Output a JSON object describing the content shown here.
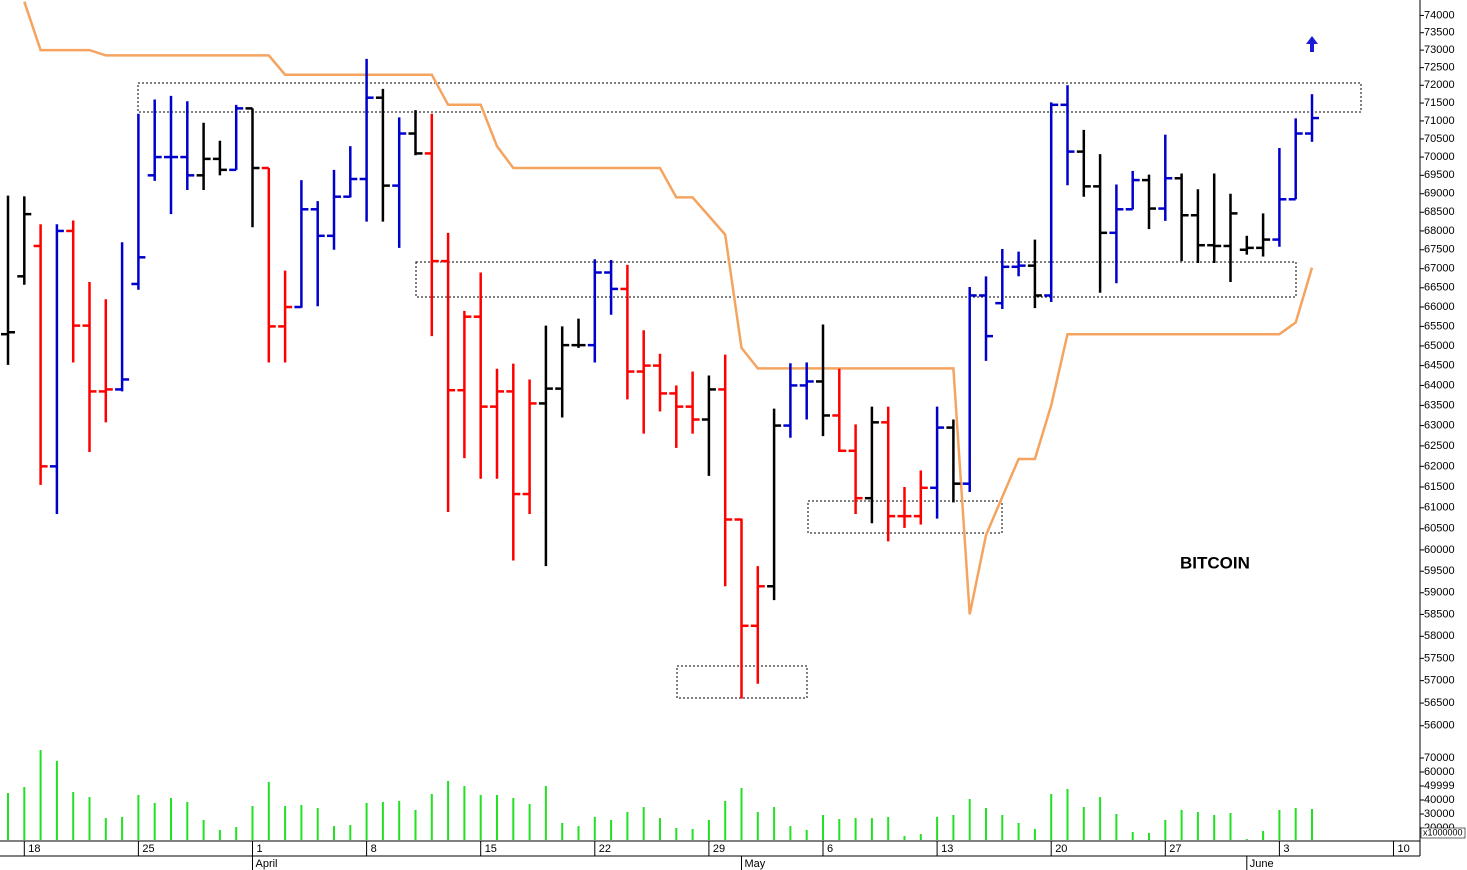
{
  "chart_data": {
    "type": "ohlc",
    "annotation": "BITCOIN",
    "log_scale": true,
    "categories": [
      null,
      "18",
      null,
      null,
      null,
      null,
      null,
      null,
      "25",
      null,
      null,
      null,
      null,
      null,
      null,
      "1",
      null,
      null,
      null,
      null,
      null,
      null,
      "8",
      null,
      null,
      null,
      null,
      null,
      null,
      "15",
      null,
      null,
      null,
      null,
      null,
      null,
      "22",
      null,
      null,
      null,
      null,
      null,
      null,
      "29",
      null,
      null,
      null,
      null,
      null,
      null,
      "6",
      null,
      null,
      null,
      null,
      null,
      null,
      "13",
      null,
      null,
      null,
      null,
      null,
      null,
      "20",
      null,
      null,
      null,
      null,
      null,
      null,
      "27",
      null,
      null,
      null,
      null,
      null,
      null,
      "3",
      null,
      null,
      null,
      null,
      null,
      null,
      "10",
      null
    ],
    "months": [
      null,
      null,
      null,
      null,
      null,
      null,
      null,
      null,
      null,
      null,
      null,
      null,
      null,
      null,
      null,
      "April",
      null,
      null,
      null,
      null,
      null,
      null,
      null,
      null,
      null,
      null,
      null,
      null,
      null,
      null,
      null,
      null,
      null,
      null,
      null,
      null,
      null,
      null,
      null,
      null,
      null,
      null,
      null,
      null,
      null,
      "May",
      null,
      null,
      null,
      null,
      null,
      null,
      null,
      null,
      null,
      null,
      null,
      null,
      null,
      null,
      null,
      null,
      null,
      null,
      null,
      null,
      null,
      null,
      null,
      null,
      null,
      null,
      null,
      null,
      null,
      null,
      "June",
      null,
      null,
      null,
      null,
      null,
      null,
      null,
      null,
      null,
      null
    ],
    "open": [
      65300,
      66800,
      67600,
      62000,
      68000,
      65520,
      63850,
      63900,
      66600,
      69500,
      70000,
      70000,
      69500,
      69950,
      69650,
      71350,
      69700,
      65500,
      66000,
      68580,
      67870,
      68920,
      69400,
      71650,
      69220,
      70650,
      70100,
      67200,
      63880,
      65750,
      63470,
      63850,
      61330,
      63550,
      63920,
      65020,
      65020,
      66900,
      66470,
      64350,
      64500,
      63800,
      63470,
      63150,
      63900,
      60720,
      58240,
      59150,
      63000,
      64000,
      64100,
      63250,
      62380,
      61230,
      63080,
      60800,
      60800,
      61480,
      62950,
      61580,
      66300,
      66100,
      67050,
      67080,
      66300,
      71450,
      70150,
      69200,
      67950,
      68580,
      69370,
      68600,
      69420,
      68420,
      67620,
      67600,
      67500,
      67550,
      67770,
      68850,
      70650,
      null,
      null,
      null,
      null,
      null,
      null
    ],
    "high": [
      68950,
      68930,
      68180,
      68180,
      68280,
      66650,
      66200,
      67700,
      71200,
      71600,
      71700,
      71550,
      70950,
      70450,
      71450,
      71350,
      69700,
      66950,
      69370,
      68800,
      69650,
      70300,
      72750,
      71900,
      71100,
      71300,
      71200,
      67950,
      65900,
      66900,
      64420,
      64550,
      64150,
      65520,
      65500,
      65700,
      67250,
      67230,
      67100,
      65400,
      64800,
      64000,
      64350,
      64250,
      64780,
      60740,
      59620,
      63420,
      64560,
      64580,
      65550,
      64420,
      63030,
      63470,
      63470,
      61500,
      61900,
      63470,
      63150,
      66520,
      66800,
      67520,
      67450,
      67770,
      71520,
      72000,
      70750,
      70080,
      69250,
      69620,
      69520,
      70620,
      69550,
      69120,
      69550,
      69000,
      67870,
      68470,
      70250,
      71070,
      71750,
      null,
      null,
      null,
      null,
      null,
      null
    ],
    "low": [
      64520,
      66580,
      61550,
      60850,
      64580,
      62350,
      63080,
      63850,
      66450,
      69350,
      68450,
      69100,
      69100,
      69500,
      69650,
      68100,
      64580,
      64580,
      65980,
      66020,
      67500,
      68900,
      68250,
      68250,
      67550,
      70050,
      65250,
      60900,
      62200,
      61700,
      61700,
      59750,
      60850,
      59620,
      63200,
      64950,
      64580,
      65800,
      63650,
      62800,
      63350,
      62450,
      62800,
      61770,
      59150,
      56600,
      56930,
      58830,
      62700,
      63150,
      62740,
      62350,
      60850,
      60630,
      60200,
      60520,
      60600,
      60740,
      61130,
      61380,
      64620,
      65950,
      66800,
      65970,
      66130,
      69230,
      68920,
      66370,
      66620,
      68580,
      68050,
      68270,
      67200,
      67150,
      67150,
      66650,
      67370,
      67320,
      67580,
      68850,
      70420,
      null,
      null,
      null,
      null,
      null,
      null
    ],
    "close": [
      65350,
      68450,
      62000,
      68000,
      65520,
      63850,
      63900,
      64150,
      67300,
      70000,
      70000,
      69500,
      69950,
      69650,
      71350,
      69700,
      65500,
      66000,
      68580,
      67870,
      68920,
      69400,
      71650,
      69220,
      70650,
      70100,
      67200,
      63880,
      65750,
      63470,
      63850,
      61330,
      63550,
      63920,
      65020,
      65020,
      66900,
      66470,
      64350,
      64500,
      63800,
      63470,
      63150,
      63900,
      60720,
      58240,
      59150,
      63000,
      64000,
      64100,
      63250,
      62380,
      61230,
      63080,
      60800,
      60800,
      61480,
      62950,
      61580,
      66300,
      65250,
      67050,
      67080,
      66300,
      71450,
      70150,
      69200,
      67950,
      68580,
      69370,
      68600,
      69420,
      68420,
      67620,
      67600,
      68470,
      67550,
      67770,
      68850,
      70650,
      71080,
      null,
      null,
      null,
      null,
      null,
      null
    ],
    "bar_colors": [
      "black",
      "black",
      "red",
      "mediumblue",
      "red",
      "red",
      "red",
      "mediumblue",
      "mediumblue",
      "mediumblue",
      "mediumblue",
      "mediumblue",
      "black",
      "black",
      "mediumblue",
      "black",
      "red",
      "red",
      "mediumblue",
      "mediumblue",
      "mediumblue",
      "mediumblue",
      "mediumblue",
      "black",
      "mediumblue",
      "black",
      "red",
      "red",
      "red",
      "red",
      "red",
      "red",
      "red",
      "black",
      "black",
      "black",
      "mediumblue",
      "mediumblue",
      "red",
      "red",
      "red",
      "red",
      "red",
      "black",
      "red",
      "red",
      "red",
      "black",
      "mediumblue",
      "mediumblue",
      "black",
      "red",
      "red",
      "black",
      "red",
      "red",
      "red",
      "mediumblue",
      "black",
      "mediumblue",
      "mediumblue",
      "mediumblue",
      "mediumblue",
      "black",
      "mediumblue",
      "mediumblue",
      "black",
      "black",
      "mediumblue",
      "mediumblue",
      "black",
      "mediumblue",
      "black",
      "black",
      "black",
      "black",
      "black",
      "black",
      "mediumblue",
      "mediumblue",
      "mediumblue",
      null,
      null,
      null,
      null,
      null,
      null
    ],
    "overlay": {
      "color": "#f5a460",
      "values": [
        null,
        74400,
        73000,
        73000,
        73000,
        73000,
        72850,
        72850,
        72850,
        72850,
        72850,
        72850,
        72850,
        72850,
        72850,
        72850,
        72850,
        72300,
        72300,
        72300,
        72300,
        72300,
        72300,
        72300,
        72300,
        72300,
        72300,
        71450,
        71450,
        71450,
        70300,
        69700,
        69700,
        69700,
        69700,
        69700,
        69700,
        69700,
        69700,
        69700,
        69700,
        68900,
        68900,
        68400,
        67900,
        64950,
        64430,
        64430,
        64430,
        64430,
        64430,
        64430,
        64430,
        64430,
        64430,
        64430,
        64430,
        64430,
        64430,
        58500,
        60350,
        61260,
        62180,
        62180,
        63500,
        65300,
        65300,
        65300,
        65300,
        65300,
        65300,
        65300,
        65300,
        65300,
        65300,
        65300,
        65300,
        65300,
        65300,
        65600,
        67030,
        null,
        null,
        null,
        null,
        null,
        null
      ]
    },
    "ylim": [
      55600,
      74450
    ],
    "yticks": [
      56000,
      56500,
      57000,
      57500,
      58000,
      58500,
      59000,
      59500,
      60000,
      60500,
      61000,
      61500,
      62000,
      62500,
      63000,
      63500,
      64000,
      64500,
      65000,
      65500,
      66000,
      66500,
      67000,
      67500,
      68000,
      68500,
      69000,
      69500,
      70000,
      70500,
      71000,
      71500,
      72000,
      72500,
      73000,
      73500,
      74000
    ],
    "volume": {
      "color": "#22e022",
      "unit_label": "x1000000",
      "ylim": [
        10000,
        90000
      ],
      "yticks": [
        20000,
        30000,
        40000,
        49999,
        60000,
        70000
      ],
      "values": [
        45000,
        49300,
        75700,
        67900,
        45700,
        42100,
        27100,
        27900,
        43600,
        37900,
        41400,
        38600,
        25700,
        18600,
        20700,
        35700,
        52900,
        35700,
        36400,
        34300,
        21400,
        22100,
        37900,
        38600,
        39300,
        32900,
        44300,
        53600,
        50000,
        43600,
        43600,
        41400,
        37100,
        50000,
        23600,
        21400,
        27900,
        25700,
        31400,
        35000,
        27100,
        20000,
        19300,
        25700,
        39300,
        48600,
        31400,
        35000,
        21400,
        18600,
        29300,
        26400,
        27100,
        27100,
        27900,
        14300,
        15700,
        27900,
        29300,
        40700,
        34300,
        29300,
        23600,
        19300,
        44300,
        47900,
        35000,
        42100,
        30000,
        17100,
        16400,
        25700,
        32900,
        31400,
        29300,
        30700,
        12100,
        17900,
        32900,
        34300,
        33600,
        null,
        null,
        null,
        null,
        null,
        null
      ]
    }
  }
}
